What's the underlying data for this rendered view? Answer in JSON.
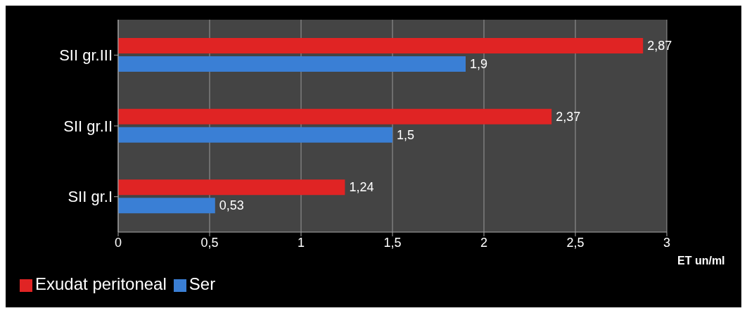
{
  "chart_data": {
    "type": "bar",
    "orientation": "horizontal",
    "categories": [
      "SII gr.III",
      "SII gr.II",
      "SII gr.I"
    ],
    "series": [
      {
        "name": "Exudat peritoneal",
        "color": "#e02424",
        "values": [
          2.87,
          2.37,
          1.24
        ],
        "value_labels": [
          "2,87",
          "2,37",
          "1,24"
        ]
      },
      {
        "name": "Ser",
        "color": "#3a7fd5",
        "values": [
          1.9,
          1.5,
          0.53
        ],
        "value_labels": [
          "1,9",
          "1,5",
          "0,53"
        ]
      }
    ],
    "xlim": [
      0,
      3
    ],
    "xticks": [
      0,
      {
        "value": 0.5,
        "label": "0,5"
      },
      1,
      {
        "value": 1.5,
        "label": "1,5"
      },
      2,
      {
        "value": 2.5,
        "label": "2,5"
      },
      3
    ],
    "xlabel": "ET un/ml",
    "grid": "x",
    "legend": "bottom left"
  }
}
